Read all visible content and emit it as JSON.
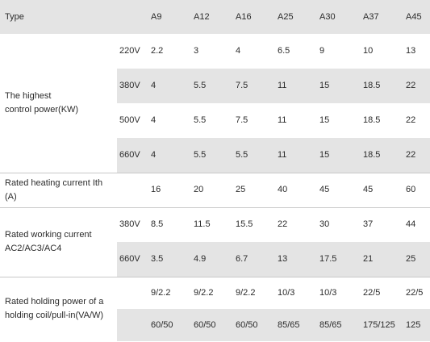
{
  "table": {
    "header": [
      "Type",
      "A9",
      "A12",
      "A16",
      "A25",
      "A30",
      "A37",
      "A45"
    ],
    "groups": [
      {
        "label": "The highest\ncontrol power(KW)",
        "rows": [
          {
            "sub": "220V",
            "cells": [
              "2.2",
              "3",
              "4",
              "6.5",
              "9",
              "10",
              "13"
            ]
          },
          {
            "sub": "380V",
            "cells": [
              "4",
              "5.5",
              "7.5",
              "11",
              "15",
              "18.5",
              "22"
            ]
          },
          {
            "sub": "500V",
            "cells": [
              "4",
              "5.5",
              "7.5",
              "11",
              "15",
              "18.5",
              "22"
            ]
          },
          {
            "sub": "660V",
            "cells": [
              "4",
              "5.5",
              "5.5",
              "11",
              "15",
              "18.5",
              "22"
            ]
          }
        ]
      },
      {
        "label": "Rated heating current Ith (A)",
        "rows": [
          {
            "cells": [
              "16",
              "20",
              "25",
              "40",
              "45",
              "45",
              "60"
            ]
          }
        ]
      },
      {
        "label": "Rated working current\nAC2/AC3/AC4",
        "rows": [
          {
            "sub": "380V",
            "cells": [
              "8.5",
              "11.5",
              "15.5",
              "22",
              "30",
              "37",
              "44"
            ]
          },
          {
            "sub": "660V",
            "cells": [
              "3.5",
              "4.9",
              "6.7",
              "13",
              "17.5",
              "21",
              "25"
            ]
          }
        ]
      },
      {
        "label": "Rated holding power of a\nholding coil/pull-in(VA/W)",
        "rows": [
          {
            "cells": [
              "9/2.2",
              "9/2.2",
              "9/2.2",
              "10/3",
              "10/3",
              "22/5",
              "22/5"
            ]
          },
          {
            "cells": [
              "60/50",
              "60/50",
              "60/50",
              "85/65",
              "85/65",
              "175/125",
              "125"
            ]
          }
        ]
      }
    ]
  }
}
